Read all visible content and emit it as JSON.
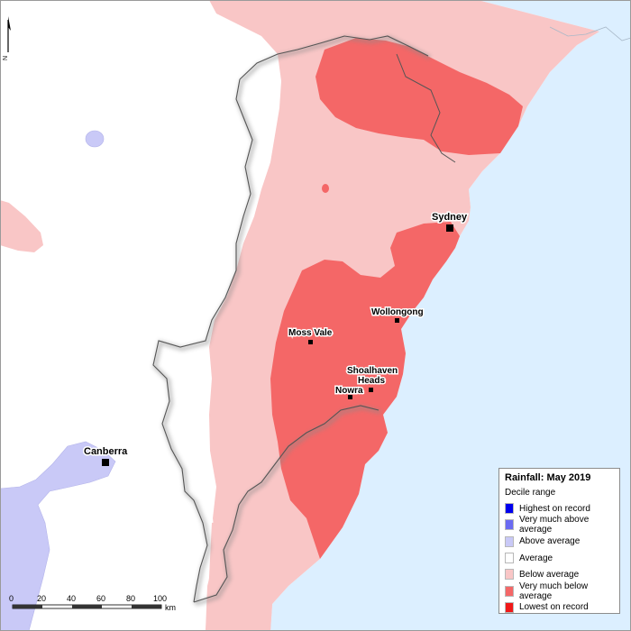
{
  "legend": {
    "title": "Rainfall: May 2019",
    "subtitle": "Decile range",
    "items": [
      {
        "label": "Highest on record",
        "color": "#0000ee"
      },
      {
        "label": "Very much above average",
        "color": "#6b6bf2"
      },
      {
        "label": "Above average",
        "color": "#c9c9f7"
      },
      {
        "label": "Average",
        "color": "#ffffff"
      },
      {
        "label": "Below average",
        "color": "#f9c6c6"
      },
      {
        "label": "Very much below average",
        "color": "#f46767"
      },
      {
        "label": "Lowest on record",
        "color": "#f01818"
      }
    ]
  },
  "places": {
    "sydney": "Sydney",
    "wollongong": "Wollongong",
    "moss_vale": "Moss Vale",
    "shoalhaven_heads_line1": "Shoalhaven",
    "shoalhaven_heads_line2": "Heads",
    "nowra": "Nowra",
    "canberra": "Canberra"
  },
  "scale_bar": {
    "ticks": [
      "0",
      "20",
      "40",
      "60",
      "80",
      "100"
    ],
    "unit": "km"
  },
  "north_arrow": {
    "label": "N"
  },
  "colors": {
    "ocean": "#dcefff",
    "land_average": "#ffffff",
    "below_average": "#f9c6c6",
    "very_much_below_average": "#f46767",
    "above_average": "#c9c9f7"
  }
}
